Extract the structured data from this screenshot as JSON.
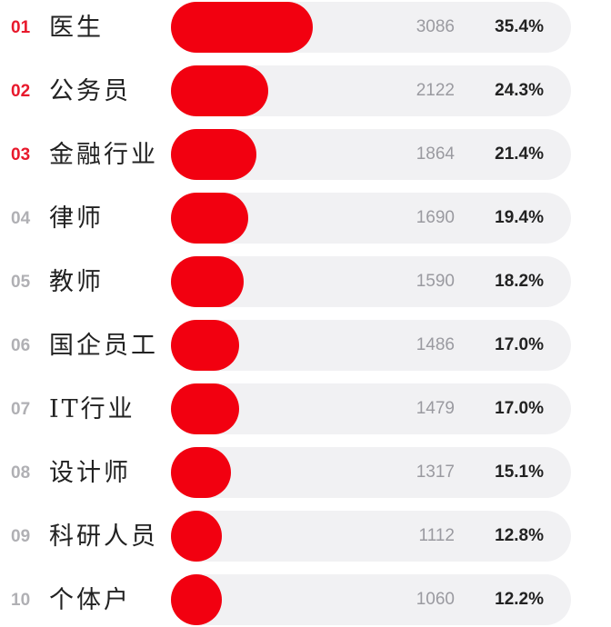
{
  "chart_data": {
    "type": "bar",
    "orientation": "horizontal",
    "xlim": [
      0,
      100
    ],
    "ranks": [
      "01",
      "02",
      "03",
      "04",
      "05",
      "06",
      "07",
      "08",
      "09",
      "10"
    ],
    "categories": [
      "医生",
      "公务员",
      "金融行业",
      "律师",
      "教师",
      "国企员工",
      "IT行业",
      "设计师",
      "科研人员",
      "个体户"
    ],
    "counts": [
      3086,
      2122,
      1864,
      1690,
      1590,
      1486,
      1479,
      1317,
      1112,
      1060
    ],
    "values": [
      35.4,
      24.3,
      21.4,
      19.4,
      18.2,
      17.0,
      17.0,
      15.1,
      12.8,
      12.2
    ],
    "value_labels": [
      "35.4%",
      "24.3%",
      "21.4%",
      "19.4%",
      "18.2%",
      "17.0%",
      "17.0%",
      "15.1%",
      "12.8%",
      "12.2%"
    ],
    "colors": {
      "bar": "#f20010",
      "track": "#f1f1f3",
      "top_rank": "#e8192c",
      "other_rank": "#b0b0b4"
    }
  }
}
